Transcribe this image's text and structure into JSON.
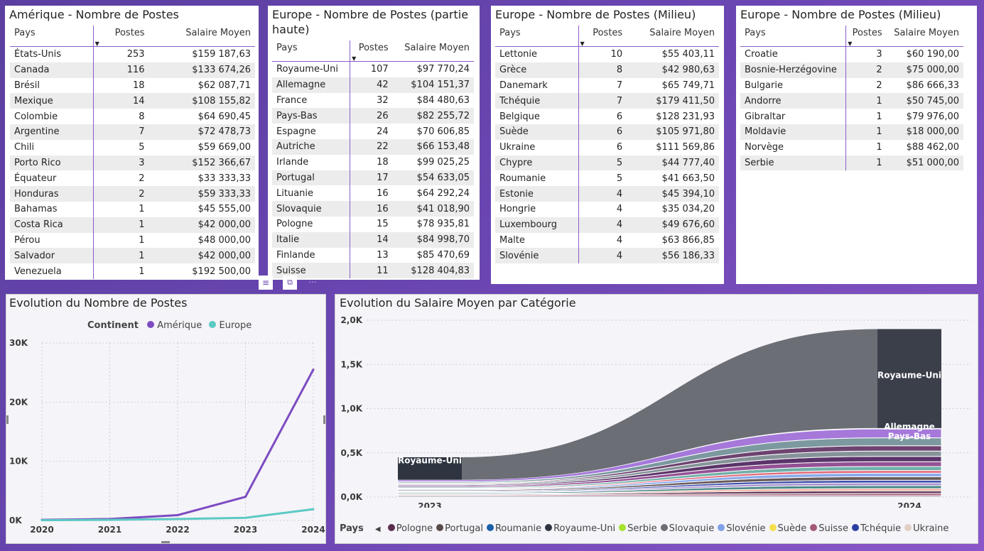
{
  "tables": [
    {
      "title": "Amérique - Nombre de Postes",
      "headers": [
        "Pays",
        "Postes",
        "Salaire Moyen"
      ],
      "rows": [
        [
          "États-Unis",
          "253",
          "$159 187,63"
        ],
        [
          "Canada",
          "116",
          "$133 674,26"
        ],
        [
          "Brésil",
          "18",
          "$62 087,71"
        ],
        [
          "Mexique",
          "14",
          "$108 155,82"
        ],
        [
          "Colombie",
          "8",
          "$64 690,45"
        ],
        [
          "Argentine",
          "7",
          "$72 478,73"
        ],
        [
          "Chili",
          "5",
          "$59 669,00"
        ],
        [
          "Porto Rico",
          "3",
          "$152 366,67"
        ],
        [
          "Équateur",
          "2",
          "$33 333,33"
        ],
        [
          "Honduras",
          "2",
          "$59 333,33"
        ],
        [
          "Bahamas",
          "1",
          "$45 555,00"
        ],
        [
          "Costa Rica",
          "1",
          "$42 000,00"
        ],
        [
          "Pérou",
          "1",
          "$48 000,00"
        ],
        [
          "Salvador",
          "1",
          "$42 000,00"
        ],
        [
          "Venezuela",
          "1",
          "$192 500,00"
        ]
      ]
    },
    {
      "title": "Europe - Nombre de Postes (partie haute)",
      "headers": [
        "Pays",
        "Postes",
        "Salaire Moyen"
      ],
      "rows": [
        [
          "Royaume-Uni",
          "107",
          "$97 770,24"
        ],
        [
          "Allemagne",
          "42",
          "$104 151,37"
        ],
        [
          "France",
          "32",
          "$84 480,63"
        ],
        [
          "Pays-Bas",
          "26",
          "$82 255,72"
        ],
        [
          "Espagne",
          "24",
          "$70 606,85"
        ],
        [
          "Autriche",
          "22",
          "$66 153,48"
        ],
        [
          "Irlande",
          "18",
          "$99 025,25"
        ],
        [
          "Portugal",
          "17",
          "$54 633,05"
        ],
        [
          "Lituanie",
          "16",
          "$64 292,24"
        ],
        [
          "Slovaquie",
          "16",
          "$41 018,90"
        ],
        [
          "Pologne",
          "15",
          "$78 935,81"
        ],
        [
          "Italie",
          "14",
          "$84 998,70"
        ],
        [
          "Finlande",
          "13",
          "$85 470,69"
        ],
        [
          "Suisse",
          "11",
          "$128 404,83"
        ]
      ]
    },
    {
      "title": "Europe - Nombre de Postes (Milieu)",
      "headers": [
        "Pays",
        "Postes",
        "Salaire Moyen"
      ],
      "rows": [
        [
          "Lettonie",
          "10",
          "$55 403,11"
        ],
        [
          "Grèce",
          "8",
          "$42 980,63"
        ],
        [
          "Danemark",
          "7",
          "$65 749,71"
        ],
        [
          "Tchéquie",
          "7",
          "$179 411,50"
        ],
        [
          "Belgique",
          "6",
          "$128 231,93"
        ],
        [
          "Suède",
          "6",
          "$105 971,80"
        ],
        [
          "Ukraine",
          "6",
          "$111 569,86"
        ],
        [
          "Chypre",
          "5",
          "$44 777,40"
        ],
        [
          "Roumanie",
          "5",
          "$41 663,50"
        ],
        [
          "Estonie",
          "4",
          "$45 394,10"
        ],
        [
          "Hongrie",
          "4",
          "$35 034,20"
        ],
        [
          "Luxembourg",
          "4",
          "$49 676,60"
        ],
        [
          "Malte",
          "4",
          "$63 866,85"
        ],
        [
          "Slovénie",
          "4",
          "$56 186,33"
        ]
      ]
    },
    {
      "title": "Europe - Nombre de Postes (Milieu)",
      "headers": [
        "Pays",
        "Postes",
        "Salaire Moyen"
      ],
      "rows": [
        [
          "Croatie",
          "3",
          "$60 190,00"
        ],
        [
          "Bosnie-Herzégovine",
          "2",
          "$75 000,00"
        ],
        [
          "Bulgarie",
          "2",
          "$86 666,33"
        ],
        [
          "Andorre",
          "1",
          "$50 745,00"
        ],
        [
          "Gibraltar",
          "1",
          "$79 976,00"
        ],
        [
          "Moldavie",
          "1",
          "$18 000,00"
        ],
        [
          "Norvège",
          "1",
          "$88 462,00"
        ],
        [
          "Serbie",
          "1",
          "$51 000,00"
        ]
      ]
    }
  ],
  "line_chart": {
    "title": "Evolution du Nombre de Postes",
    "legend_title": "Continent",
    "colors": {
      "Amérique": "#7d4cc2",
      "Europe": "#5cc9c4"
    }
  },
  "ribbon_chart": {
    "title": "Evolution du Salaire Moyen par Catégorie",
    "legend_title": "Pays",
    "label_2023": "Royaume-Uni",
    "labels_2024": [
      "Royaume-Uni",
      "Allemagne",
      "Pays-Bas"
    ]
  },
  "chart_data": [
    {
      "type": "line",
      "title": "Evolution du Nombre de Postes",
      "x": [
        "2020",
        "2021",
        "2022",
        "2023",
        "2024"
      ],
      "y_ticks": [
        "0K",
        "10K",
        "20K",
        "30K"
      ],
      "ylim": [
        0,
        30000
      ],
      "legend_title": "Continent",
      "legend_placement": "top",
      "series": [
        {
          "name": "Amérique",
          "values": [
            100,
            250,
            900,
            4000,
            25500
          ]
        },
        {
          "name": "Europe",
          "values": [
            50,
            100,
            250,
            450,
            1900
          ]
        }
      ]
    },
    {
      "type": "area",
      "title": "Evolution du Salaire Moyen par Catégorie",
      "x": [
        "2023",
        "2024"
      ],
      "y_ticks": [
        "0,0K",
        "0,5K",
        "1,0K",
        "1,5K",
        "2,0K"
      ],
      "ylim": [
        0,
        2000
      ],
      "legend_title": "Pays",
      "legend_placement": "bottom",
      "legend_entries": [
        {
          "name": "Pologne",
          "color": "#5a2f4d"
        },
        {
          "name": "Portugal",
          "color": "#5a4a4a"
        },
        {
          "name": "Roumanie",
          "color": "#1a5fa8"
        },
        {
          "name": "Royaume-Uni",
          "color": "#2e3440"
        },
        {
          "name": "Serbie",
          "color": "#a6e22e"
        },
        {
          "name": "Slovaquie",
          "color": "#6b6e75"
        },
        {
          "name": "Slovénie",
          "color": "#7fa2e8"
        },
        {
          "name": "Suède",
          "color": "#f5df4d"
        },
        {
          "name": "Suisse",
          "color": "#a35a78"
        },
        {
          "name": "Tchéquie",
          "color": "#2b3fa3"
        },
        {
          "name": "Ukraine",
          "color": "#e0cfc4"
        }
      ],
      "series": [
        {
          "name": "Royaume-Uni",
          "values": [
            180,
            1900
          ]
        },
        {
          "name": "Allemagne",
          "values": [
            20,
            100
          ]
        },
        {
          "name": "Pays-Bas",
          "values": [
            15,
            90
          ]
        }
      ]
    }
  ]
}
